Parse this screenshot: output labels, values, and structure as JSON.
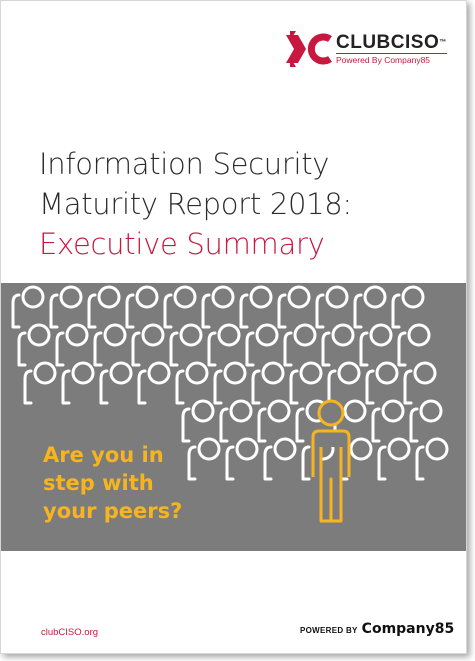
{
  "logo": {
    "name": "CLUBCISO",
    "trademark": "™",
    "subtitle": "Powered By Company85",
    "mark_color": "#c8183f"
  },
  "title": {
    "line1": "Information Security",
    "line2": "Maturity Report 2018:",
    "line3": "Executive Summary"
  },
  "tagline": {
    "line1": "Are you in",
    "line2": "step with",
    "line3": "your peers?"
  },
  "footer": {
    "website": "clubCISO.org",
    "powered_by": "POWERED BY",
    "company": "Company85"
  },
  "colors": {
    "accent": "#c8183f",
    "band": "#7d7c7c",
    "highlight": "#f6b520",
    "people": "#ffffff"
  }
}
